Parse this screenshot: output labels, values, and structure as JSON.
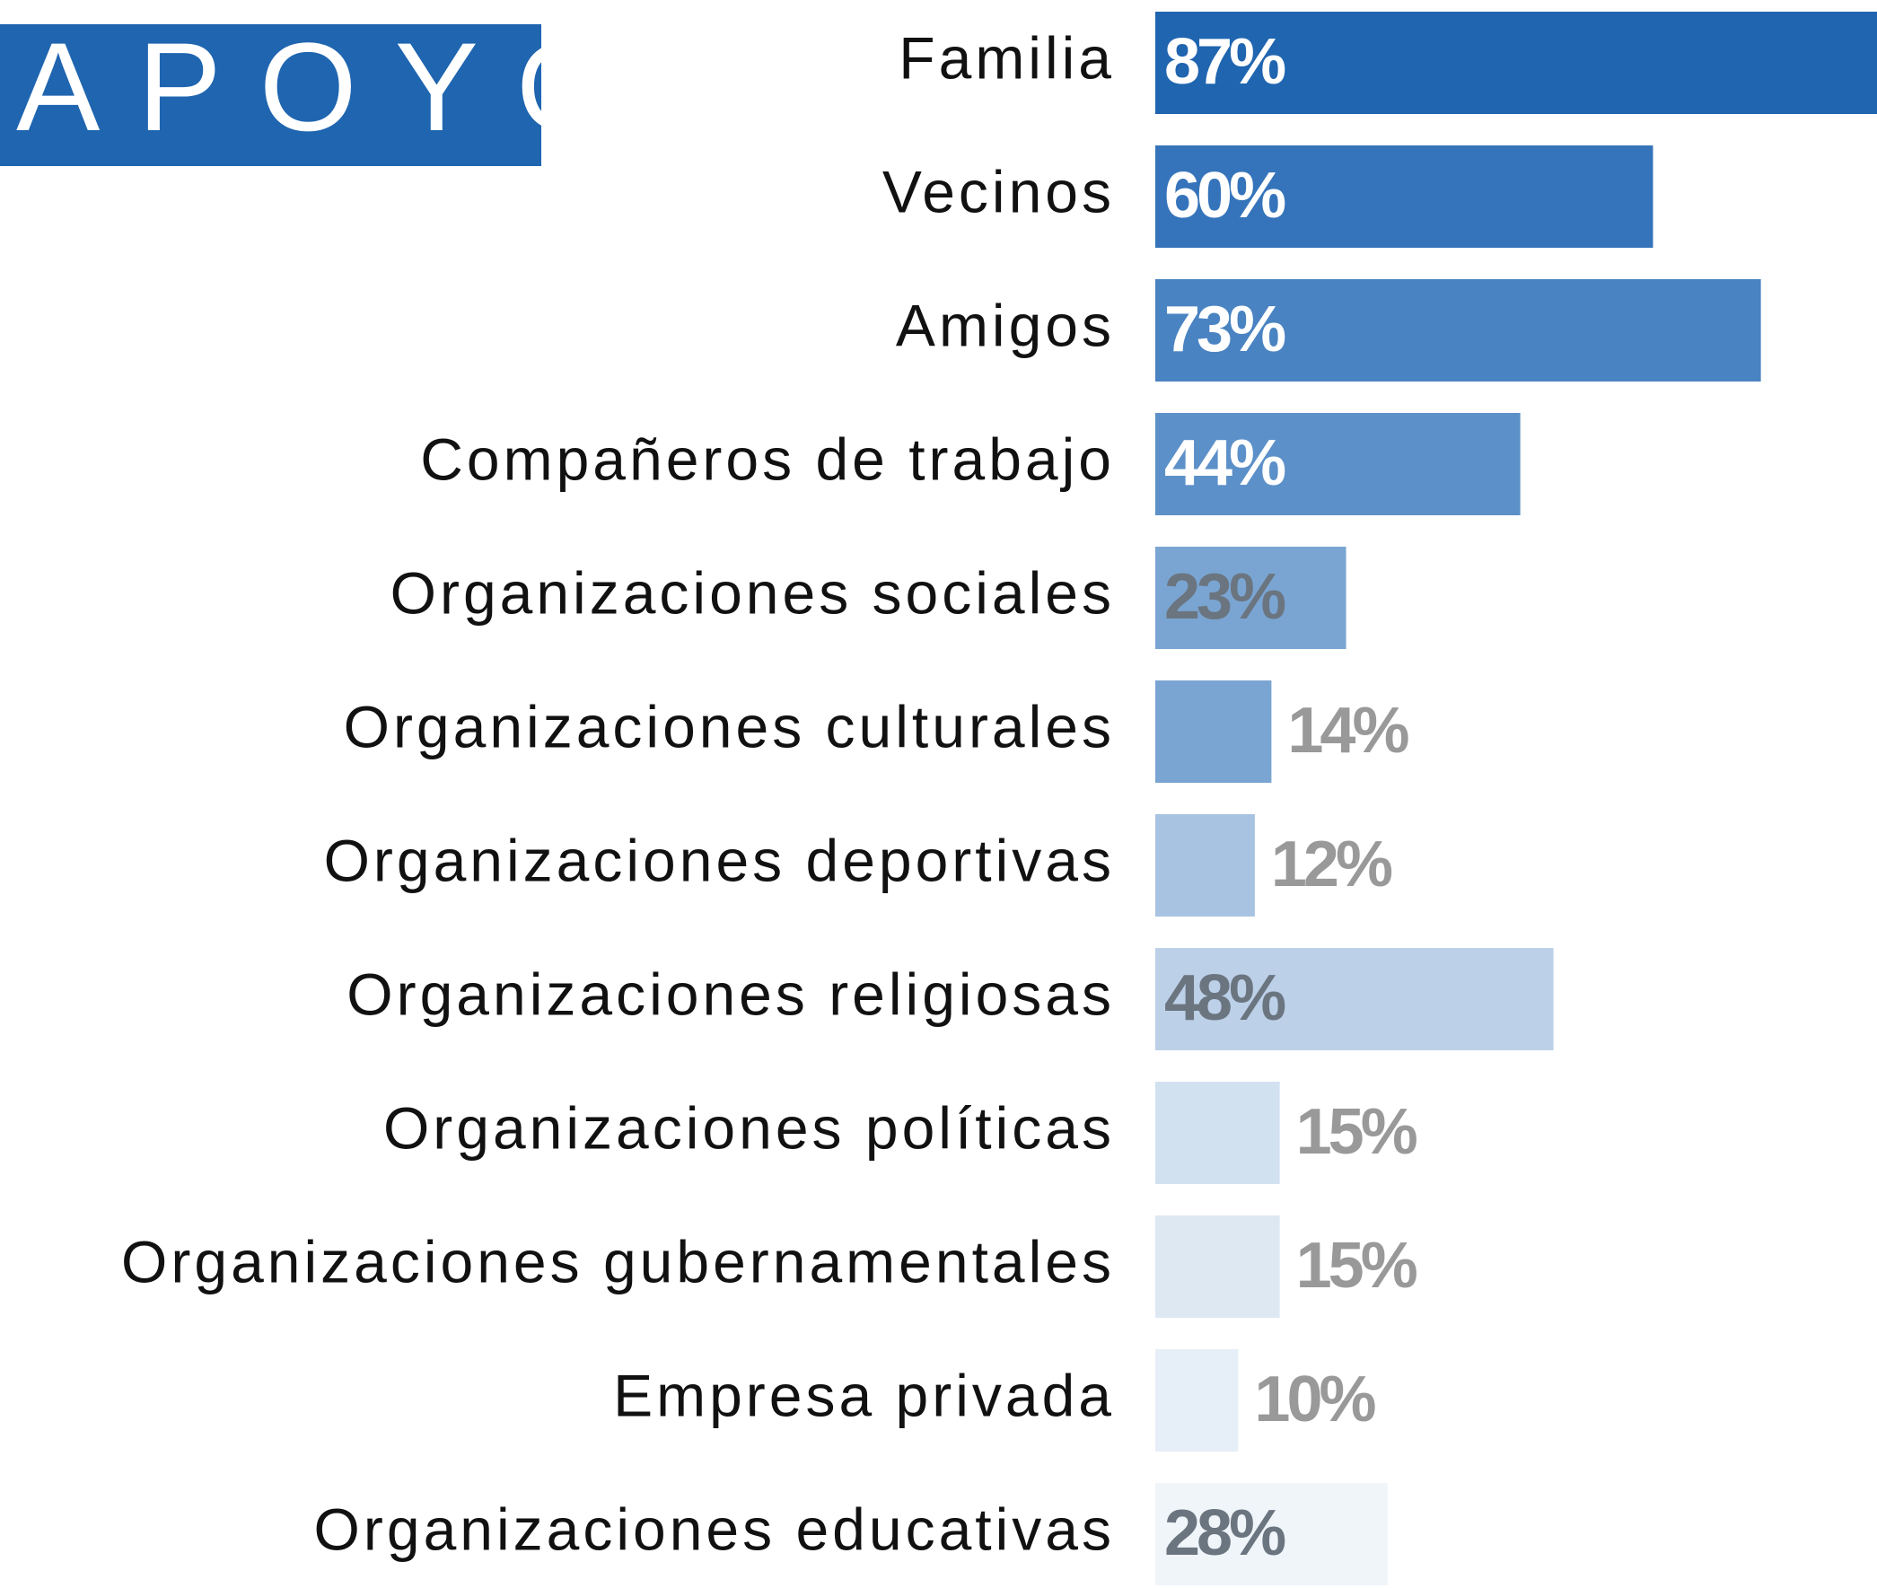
{
  "chart_data": {
    "type": "bar",
    "orientation": "horizontal",
    "title": "APOYO",
    "categories": [
      "Familia",
      "Vecinos",
      "Amigos",
      "Compañeros de trabajo",
      "Organizaciones sociales",
      "Organizaciones culturales",
      "Organizaciones deportivas",
      "Organizaciones religiosas",
      "Organizaciones políticas",
      "Organizaciones gubernamentales",
      "Empresa privada",
      "Organizaciones educativas"
    ],
    "values": [
      87,
      60,
      73,
      44,
      23,
      14,
      12,
      48,
      15,
      15,
      10,
      28
    ],
    "value_labels": [
      "87%",
      "60%",
      "73%",
      "44%",
      "23%",
      "14%",
      "12%",
      "48%",
      "15%",
      "15%",
      "10%",
      "28%"
    ],
    "colors": [
      "#1f65b0",
      "#3574ba",
      "#4a83c2",
      "#5c90c8",
      "#7aa5d2",
      "#7aa5d2",
      "#a8c3e2",
      "#bcd0e8",
      "#d2e1f0",
      "#dde8f3",
      "#e6eef7",
      "#f0f5fa"
    ]
  }
}
